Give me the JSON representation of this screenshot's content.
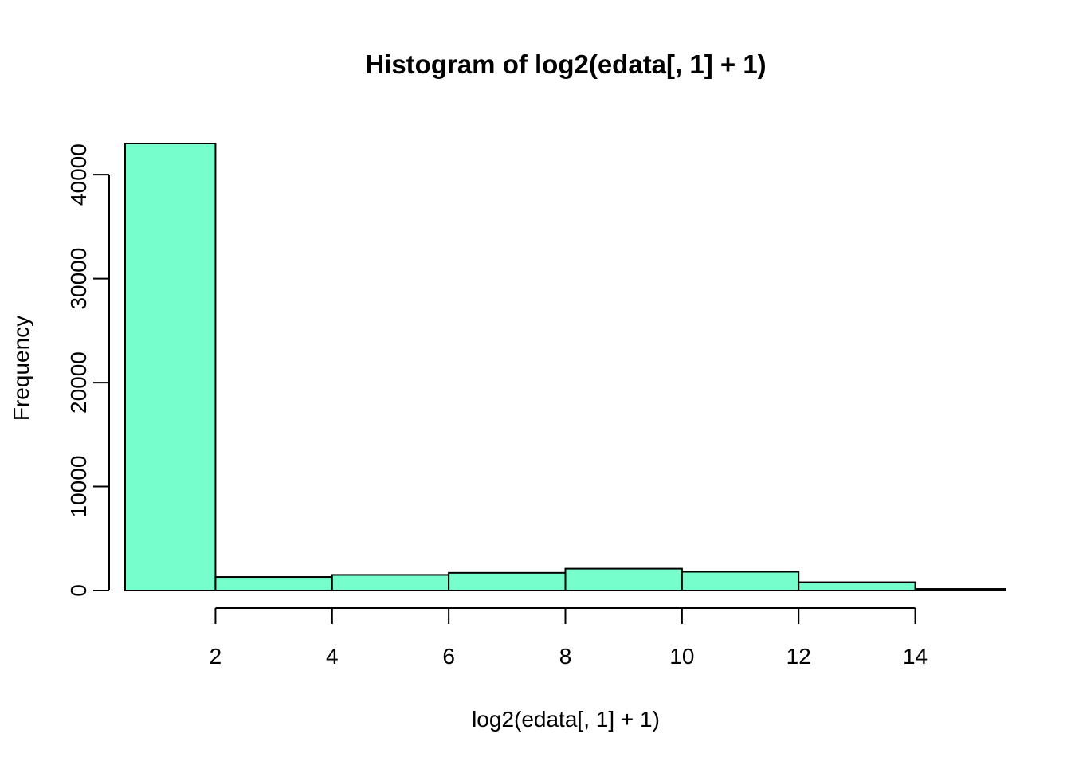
{
  "chart_data": {
    "type": "bar",
    "title": "Histogram of log2(edata[, 1] + 1)",
    "xlabel": "log2(edata[, 1] + 1)",
    "ylabel": "Frequency",
    "bin_edges": [
      0,
      2,
      4,
      6,
      8,
      10,
      12,
      14,
      16
    ],
    "values": [
      43000,
      1300,
      1500,
      1700,
      2100,
      1800,
      800,
      150
    ],
    "xlim": [
      0.45,
      15.55
    ],
    "ylim": [
      0,
      43000
    ],
    "x_ticks": [
      2,
      4,
      6,
      8,
      10,
      12,
      14
    ],
    "y_ticks": [
      0,
      10000,
      20000,
      30000,
      40000
    ],
    "bar_color": "#76ffcc",
    "edge_color": "#000000",
    "grid": false,
    "legend": "none"
  }
}
